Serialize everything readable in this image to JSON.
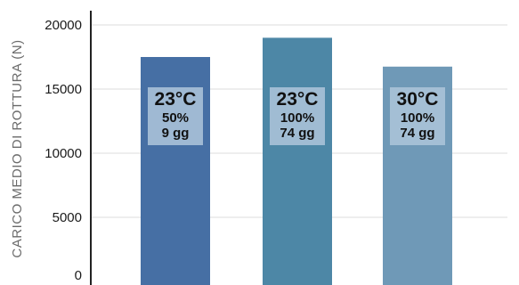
{
  "chart_data": {
    "type": "bar",
    "title": "",
    "xlabel": "",
    "ylabel": "CARICO MEDIO DI ROTTURA (N)",
    "ylim": [
      0,
      20000
    ],
    "yticks": [
      0,
      5000,
      10000,
      15000,
      20000
    ],
    "grid": true,
    "categories": [
      "23°C 50% 9 gg",
      "23°C 100% 74 gg",
      "30°C 100% 74 gg"
    ],
    "values": [
      17500,
      19000,
      16750
    ],
    "bar_colors": [
      "#466fa4",
      "#4d87a6",
      "#6f99b7"
    ],
    "annotations": [
      {
        "temp": "23°C",
        "humidity": "50%",
        "days": "9 gg"
      },
      {
        "temp": "23°C",
        "humidity": "100%",
        "days": "74 gg"
      },
      {
        "temp": "30°C",
        "humidity": "100%",
        "days": "74 gg"
      }
    ]
  }
}
